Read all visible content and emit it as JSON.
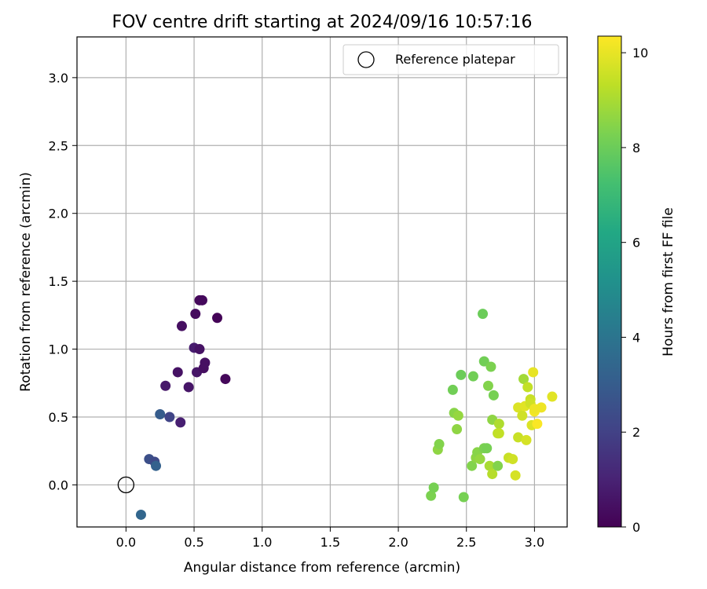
{
  "chart_data": {
    "type": "scatter",
    "title": "FOV centre drift starting at 2024/09/16 10:57:16",
    "xlabel": "Angular distance from reference (arcmin)",
    "ylabel": "Rotation from reference (arcmin)",
    "xlim": [
      -0.36,
      3.24
    ],
    "ylim": [
      -0.31,
      3.3
    ],
    "xticks": [
      0.0,
      0.5,
      1.0,
      1.5,
      2.0,
      2.5,
      3.0
    ],
    "yticks": [
      0.0,
      0.5,
      1.0,
      1.5,
      2.0,
      2.5,
      3.0
    ],
    "grid": true,
    "legend": {
      "placement": "top-right",
      "entries": [
        "Reference platepar"
      ]
    },
    "reference_point": {
      "x": 0.0,
      "y": 0.0,
      "label": "Reference platepar"
    },
    "colorbar": {
      "label": "Hours from first FF file",
      "range": [
        0,
        10.35
      ],
      "ticks": [
        0,
        2,
        4,
        6,
        8,
        10
      ],
      "colormap": "viridis"
    },
    "points": [
      {
        "x": 0.11,
        "y": -0.22,
        "hours": 3.4
      },
      {
        "x": 0.17,
        "y": 0.19,
        "hours": 2.5
      },
      {
        "x": 0.21,
        "y": 0.17,
        "hours": 2.3
      },
      {
        "x": 0.22,
        "y": 0.14,
        "hours": 3.2
      },
      {
        "x": 0.25,
        "y": 0.52,
        "hours": 3.0
      },
      {
        "x": 0.32,
        "y": 0.5,
        "hours": 2.1
      },
      {
        "x": 0.29,
        "y": 0.73,
        "hours": 0.7
      },
      {
        "x": 0.4,
        "y": 0.46,
        "hours": 0.9
      },
      {
        "x": 0.38,
        "y": 0.83,
        "hours": 0.5
      },
      {
        "x": 0.41,
        "y": 1.17,
        "hours": 0.4
      },
      {
        "x": 0.46,
        "y": 0.72,
        "hours": 0.6
      },
      {
        "x": 0.5,
        "y": 1.01,
        "hours": 0.8
      },
      {
        "x": 0.51,
        "y": 1.26,
        "hours": 0.3
      },
      {
        "x": 0.52,
        "y": 0.83,
        "hours": 0.6
      },
      {
        "x": 0.54,
        "y": 1.0,
        "hours": 0.5
      },
      {
        "x": 0.54,
        "y": 1.36,
        "hours": 0.2
      },
      {
        "x": 0.56,
        "y": 1.36,
        "hours": 0.25
      },
      {
        "x": 0.57,
        "y": 0.86,
        "hours": 0.4
      },
      {
        "x": 0.58,
        "y": 0.9,
        "hours": 0.45
      },
      {
        "x": 0.67,
        "y": 1.23,
        "hours": 0.1
      },
      {
        "x": 0.73,
        "y": 0.78,
        "hours": 0.2
      },
      {
        "x": 2.24,
        "y": -0.08,
        "hours": 8.3
      },
      {
        "x": 2.26,
        "y": -0.02,
        "hours": 8.2
      },
      {
        "x": 2.29,
        "y": 0.26,
        "hours": 8.6
      },
      {
        "x": 2.3,
        "y": 0.3,
        "hours": 8.4
      },
      {
        "x": 2.4,
        "y": 0.7,
        "hours": 8.1
      },
      {
        "x": 2.41,
        "y": 0.53,
        "hours": 8.5
      },
      {
        "x": 2.43,
        "y": 0.41,
        "hours": 8.6
      },
      {
        "x": 2.44,
        "y": 0.51,
        "hours": 8.7
      },
      {
        "x": 2.46,
        "y": 0.81,
        "hours": 8.0
      },
      {
        "x": 2.48,
        "y": -0.09,
        "hours": 8.2
      },
      {
        "x": 2.54,
        "y": 0.14,
        "hours": 8.4
      },
      {
        "x": 2.55,
        "y": 0.8,
        "hours": 8.1
      },
      {
        "x": 2.57,
        "y": 0.2,
        "hours": 8.6
      },
      {
        "x": 2.58,
        "y": 0.24,
        "hours": 8.5
      },
      {
        "x": 2.6,
        "y": 0.19,
        "hours": 8.7
      },
      {
        "x": 2.62,
        "y": 1.26,
        "hours": 8.0
      },
      {
        "x": 2.63,
        "y": 0.91,
        "hours": 8.1
      },
      {
        "x": 2.63,
        "y": 0.27,
        "hours": 8.3
      },
      {
        "x": 2.65,
        "y": 0.27,
        "hours": 8.2
      },
      {
        "x": 2.66,
        "y": 0.73,
        "hours": 8.4
      },
      {
        "x": 2.67,
        "y": 0.14,
        "hours": 9.0
      },
      {
        "x": 2.68,
        "y": 0.87,
        "hours": 8.3
      },
      {
        "x": 2.69,
        "y": 0.48,
        "hours": 8.6
      },
      {
        "x": 2.69,
        "y": 0.08,
        "hours": 9.2
      },
      {
        "x": 2.7,
        "y": 0.66,
        "hours": 8.2
      },
      {
        "x": 2.73,
        "y": 0.14,
        "hours": 8.4
      },
      {
        "x": 2.73,
        "y": 0.38,
        "hours": 9.3
      },
      {
        "x": 2.74,
        "y": 0.45,
        "hours": 9.1
      },
      {
        "x": 2.74,
        "y": 0.38,
        "hours": 9.4
      },
      {
        "x": 2.81,
        "y": 0.2,
        "hours": 9.5
      },
      {
        "x": 2.84,
        "y": 0.19,
        "hours": 9.6
      },
      {
        "x": 2.86,
        "y": 0.07,
        "hours": 9.7
      },
      {
        "x": 2.88,
        "y": 0.57,
        "hours": 9.8
      },
      {
        "x": 2.88,
        "y": 0.35,
        "hours": 9.5
      },
      {
        "x": 2.91,
        "y": 0.51,
        "hours": 9.6
      },
      {
        "x": 2.92,
        "y": 0.78,
        "hours": 8.9
      },
      {
        "x": 2.93,
        "y": 0.58,
        "hours": 9.9
      },
      {
        "x": 2.94,
        "y": 0.33,
        "hours": 9.7
      },
      {
        "x": 2.95,
        "y": 0.72,
        "hours": 9.4
      },
      {
        "x": 2.97,
        "y": 0.63,
        "hours": 9.5
      },
      {
        "x": 2.97,
        "y": 0.6,
        "hours": 9.6
      },
      {
        "x": 2.98,
        "y": 0.44,
        "hours": 9.8
      },
      {
        "x": 2.99,
        "y": 0.83,
        "hours": 10.0
      },
      {
        "x": 3.0,
        "y": 0.54,
        "hours": 10.2
      },
      {
        "x": 3.0,
        "y": 0.56,
        "hours": 10.1
      },
      {
        "x": 3.02,
        "y": 0.45,
        "hours": 10.3
      },
      {
        "x": 3.05,
        "y": 0.57,
        "hours": 10.1
      },
      {
        "x": 3.13,
        "y": 0.65,
        "hours": 9.9
      }
    ]
  }
}
